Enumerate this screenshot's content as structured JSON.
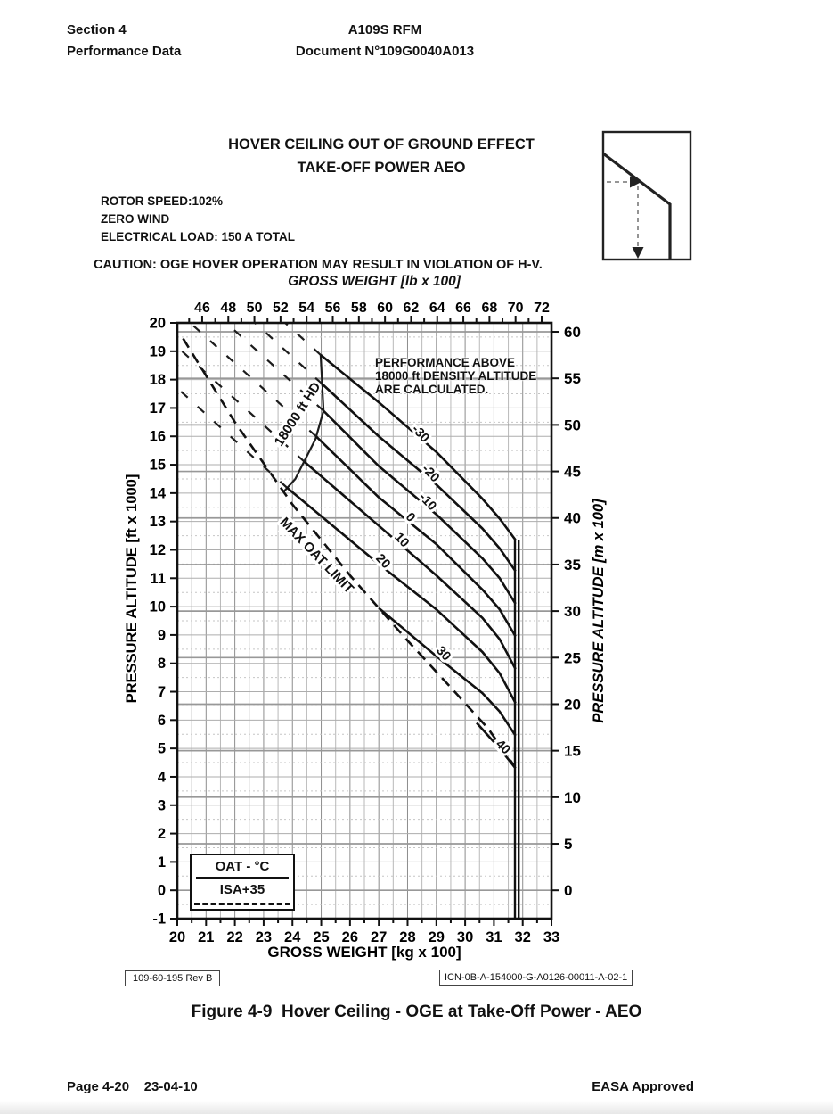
{
  "page": {
    "header": {
      "section_line1": "Section 4",
      "section_line2": "Performance Data",
      "doc_line1": "A109S RFM",
      "doc_line2": "Document N°109G0040A013"
    },
    "title_line1": "HOVER CEILING OUT OF GROUND EFFECT",
    "title_line2": "TAKE-OFF POWER AEO",
    "conditions": [
      "ROTOR SPEED:102%",
      "ZERO WIND",
      "ELECTRICAL LOAD: 150 A TOTAL"
    ],
    "caution": "CAUTION: OGE HOVER OPERATION MAY RESULT IN VIOLATION OF H-V.",
    "figure_caption": "Figure 4-9  Hover Ceiling - OGE at Take-Off Power - AEO",
    "ref_left": "109-60-195 Rev B",
    "ref_right": "ICN-0B-A-154000-G-A0126-00011-A-02-1",
    "footer_left": "Page 4-20    23-04-10",
    "footer_right": "EASA Approved"
  },
  "legend": {
    "row1": "OAT -  °C",
    "row2": "ISA+35"
  },
  "chart_data": {
    "type": "line",
    "title": "HOVER CEILING OUT OF GROUND EFFECT - TAKE-OFF POWER AEO",
    "x_bottom": {
      "label": "GROSS WEIGHT [kg x 100]",
      "min": 20,
      "max": 33,
      "tick_step": 1,
      "minor_step": 0.5
    },
    "x_top": {
      "label": "GROSS WEIGHT [lb x 100]",
      "ticks": [
        46,
        48,
        50,
        52,
        54,
        56,
        58,
        60,
        62,
        64,
        66,
        68,
        70,
        72
      ],
      "minor_from": 45,
      "minor_to": 72
    },
    "y_left": {
      "label": "PRESSURE ALTITUDE [ft x 1000]",
      "min": -1,
      "max": 20,
      "tick_step": 1
    },
    "y_right": {
      "label": "PRESSURE ALTITUDE [m x 100]",
      "ticks": [
        0,
        5,
        10,
        15,
        20,
        25,
        30,
        35,
        40,
        45,
        50,
        55,
        60
      ]
    },
    "annotation": [
      "PERFORMANCE ABOVE",
      "18000 ft DENSITY ALTITUDE",
      "ARE CALCULATED."
    ],
    "boundary_label": "18000 ft HD",
    "boundary_label_at": [
      24.3,
      16.7
    ],
    "boundary_label_rot": -57,
    "max_oat_label": "MAX OAT LIMIT",
    "max_oat_label_at": [
      24.74,
      11.7
    ],
    "max_oat_label_rot": 46,
    "weight_limit_kg": [
      31.73,
      31.86
    ],
    "weight_limit_top_ft": 12.35,
    "boundary_points": [
      [
        24.98,
        18.87
      ],
      [
        25.08,
        16.9
      ],
      [
        24.8,
        15.9
      ],
      [
        24.1,
        14.5
      ],
      [
        23.68,
        14.03
      ]
    ],
    "isa35_points": [
      [
        20.2,
        19.45
      ],
      [
        22.0,
        16.5
      ],
      [
        24.0,
        13.6
      ],
      [
        26.0,
        11.1
      ],
      [
        28.0,
        8.8
      ],
      [
        29.5,
        7.15
      ],
      [
        30.8,
        5.7
      ],
      [
        31.73,
        4.35
      ]
    ],
    "calculated_extensions": [
      [
        [
          24.98,
          18.87
        ],
        [
          23.75,
          20.0
        ]
      ],
      [
        [
          25.03,
          17.85
        ],
        [
          22.7,
          20.0
        ]
      ],
      [
        [
          25.08,
          16.9
        ],
        [
          21.7,
          20.0
        ]
      ],
      [
        [
          24.82,
          16.0
        ],
        [
          20.45,
          20.0
        ]
      ],
      [
        [
          24.42,
          15.1
        ],
        [
          20.0,
          19.15
        ]
      ],
      [
        [
          23.8,
          14.2
        ],
        [
          20.0,
          17.7
        ]
      ]
    ],
    "series": [
      {
        "oat_label": "-30",
        "label_at": [
          28.35,
          16.0
        ],
        "label_rot": 47,
        "points": [
          [
            24.98,
            18.87
          ],
          [
            27.0,
            17.2
          ],
          [
            29.0,
            15.45
          ],
          [
            30.6,
            13.8
          ],
          [
            31.2,
            13.1
          ],
          [
            31.75,
            12.35
          ]
        ]
      },
      {
        "oat_label": "-20",
        "label_at": [
          28.7,
          14.6
        ],
        "label_rot": 47,
        "points": [
          [
            25.03,
            17.85
          ],
          [
            27.0,
            16.0
          ],
          [
            29.0,
            14.3
          ],
          [
            30.6,
            12.75
          ],
          [
            31.2,
            12.05
          ],
          [
            31.75,
            11.25
          ]
        ]
      },
      {
        "oat_label": "-10",
        "label_at": [
          28.6,
          13.6
        ],
        "label_rot": 47,
        "points": [
          [
            25.08,
            16.9
          ],
          [
            27.0,
            14.95
          ],
          [
            29.0,
            13.25
          ],
          [
            30.6,
            11.7
          ],
          [
            31.2,
            11.0
          ],
          [
            31.75,
            10.1
          ]
        ]
      },
      {
        "oat_label": "0",
        "label_at": [
          28.0,
          13.05
        ],
        "label_rot": 47,
        "points": [
          [
            24.82,
            16.0
          ],
          [
            27.0,
            13.85
          ],
          [
            29.0,
            12.2
          ],
          [
            30.6,
            10.6
          ],
          [
            31.2,
            9.9
          ],
          [
            31.75,
            8.95
          ]
        ]
      },
      {
        "oat_label": "10",
        "label_at": [
          27.7,
          12.25
        ],
        "label_rot": 47,
        "points": [
          [
            24.42,
            15.1
          ],
          [
            27.0,
            12.85
          ],
          [
            29.0,
            11.1
          ],
          [
            30.6,
            9.6
          ],
          [
            31.2,
            8.85
          ],
          [
            31.75,
            7.8
          ]
        ]
      },
      {
        "oat_label": "20",
        "label_at": [
          27.05,
          11.5
        ],
        "label_rot": 47,
        "points": [
          [
            23.8,
            14.2
          ],
          [
            27.0,
            11.5
          ],
          [
            29.0,
            9.9
          ],
          [
            30.6,
            8.4
          ],
          [
            31.2,
            7.65
          ],
          [
            31.75,
            6.6
          ]
        ]
      },
      {
        "oat_label": "30",
        "label_at": [
          29.15,
          8.25
        ],
        "label_rot": 47,
        "points": [
          [
            27.0,
            9.95
          ],
          [
            29.0,
            8.25
          ],
          [
            30.6,
            6.95
          ],
          [
            31.2,
            6.3
          ],
          [
            31.75,
            5.45
          ]
        ]
      },
      {
        "oat_label": "40",
        "label_at": [
          31.22,
          4.95
        ],
        "label_rot": 44,
        "points": [
          [
            30.4,
            5.9
          ],
          [
            31.2,
            5.0
          ],
          [
            31.75,
            4.3
          ]
        ]
      }
    ]
  }
}
